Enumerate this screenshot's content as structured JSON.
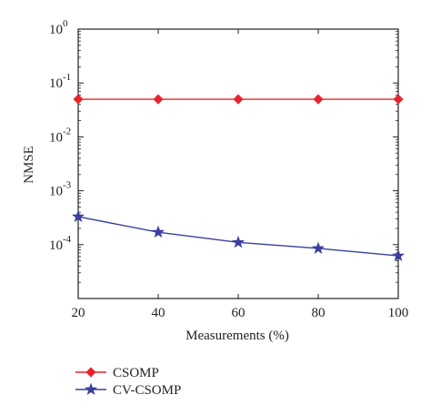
{
  "chart_data": {
    "type": "line",
    "title": "",
    "xlabel": "Measurements (%)",
    "ylabel": "NMSE",
    "x": [
      20,
      40,
      60,
      80,
      100
    ],
    "xlim": [
      20,
      100
    ],
    "x_ticks": [
      "20",
      "40",
      "60",
      "80",
      "100"
    ],
    "ylim": [
      1e-05,
      1
    ],
    "y_scale": "log",
    "y_ticks": [
      {
        "value": 1,
        "base": "10",
        "exp": "0"
      },
      {
        "value": 0.1,
        "base": "10",
        "exp": "-1"
      },
      {
        "value": 0.01,
        "base": "10",
        "exp": "-2"
      },
      {
        "value": 0.001,
        "base": "10",
        "exp": "-3"
      },
      {
        "value": 0.0001,
        "base": "10",
        "exp": "-4"
      }
    ],
    "grid": false,
    "legend_position": "bottom-left, below plot",
    "series": [
      {
        "name": "CSOMP",
        "color": "#e8242b",
        "marker": "diamond",
        "values": [
          0.05,
          0.05,
          0.05,
          0.05,
          0.05
        ]
      },
      {
        "name": "CV-CSOMP",
        "color": "#3b3f9e",
        "marker": "star",
        "values": [
          0.00033,
          0.00017,
          0.00011,
          8.5e-05,
          6.2e-05
        ]
      }
    ]
  }
}
